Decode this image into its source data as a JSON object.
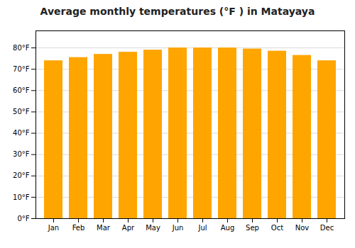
{
  "chart_data": {
    "type": "bar",
    "title": "Average monthly temperatures (°F ) in Matayaya",
    "categories": [
      "Jan",
      "Feb",
      "Mar",
      "Apr",
      "May",
      "Jun",
      "Jul",
      "Aug",
      "Sep",
      "Oct",
      "Nov",
      "Dec"
    ],
    "values": [
      74,
      75.5,
      77,
      78,
      79,
      80,
      80,
      80,
      79.5,
      78.5,
      76.5,
      74
    ],
    "color": "#FFA500",
    "ylim": [
      0,
      88
    ],
    "yticks": [
      {
        "value": 0,
        "label": "0°F"
      },
      {
        "value": 10,
        "label": "10°F"
      },
      {
        "value": 20,
        "label": "20°F"
      },
      {
        "value": 30,
        "label": "30°F"
      },
      {
        "value": 40,
        "label": "40°F"
      },
      {
        "value": 50,
        "label": "50°F"
      },
      {
        "value": 60,
        "label": "60°F"
      },
      {
        "value": 70,
        "label": "70°F"
      },
      {
        "value": 80,
        "label": "80°F"
      }
    ],
    "grid": true
  }
}
